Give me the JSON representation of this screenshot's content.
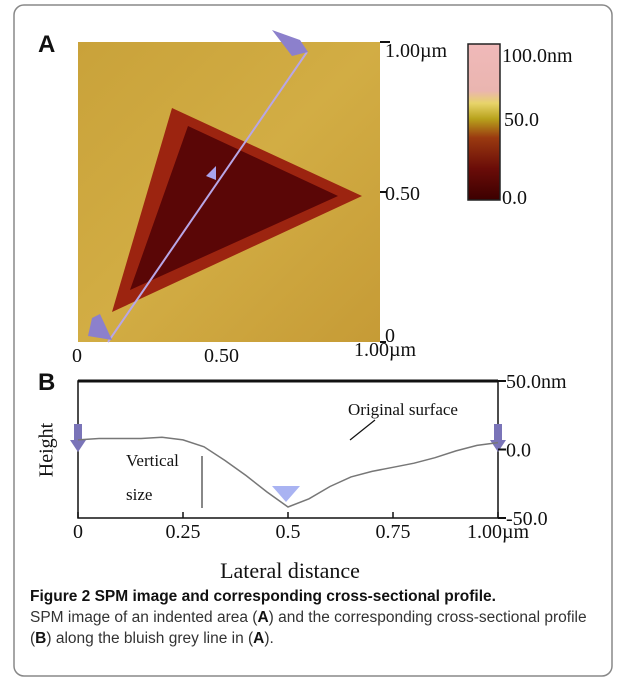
{
  "panel_a": {
    "label": "A",
    "right_ticks": [
      "1.00µm",
      "0.50",
      "0"
    ],
    "bottom_ticks": [
      "0",
      "0.50",
      "1.00µm"
    ],
    "colorbar_ticks": [
      "100.0nm",
      "50.0",
      "0.0"
    ]
  },
  "chart_data": {
    "type": "line",
    "panel_label": "B",
    "x_label": "Lateral distance",
    "y_label": "Height",
    "annotations": [
      "Original surface",
      "Vertical",
      "size"
    ],
    "x": [
      0,
      0.05,
      0.1,
      0.15,
      0.2,
      0.25,
      0.3,
      0.35,
      0.4,
      0.45,
      0.5,
      0.55,
      0.6,
      0.65,
      0.7,
      0.75,
      0.8,
      0.85,
      0.9,
      0.95,
      1.0
    ],
    "series": [
      {
        "name": "Height",
        "color": "#777777",
        "values": [
          7,
          8,
          8,
          8,
          9,
          7,
          2,
          -8,
          -19,
          -31,
          -42,
          -36,
          -27,
          -20,
          -16,
          -13,
          -10,
          -6,
          -1,
          3,
          5
        ]
      }
    ],
    "xlim": [
      0,
      1
    ],
    "xticks": [
      0,
      0.25,
      0.5,
      0.75,
      {
        "value": 1,
        "label": "1.00µm"
      }
    ],
    "ylim": [
      -50,
      50
    ],
    "yticks": [
      {
        "value": 50,
        "label": "50.0nm"
      },
      {
        "value": 0,
        "label": "0.0"
      },
      {
        "value": -50,
        "label": "-50.0"
      }
    ]
  },
  "caption": {
    "title": "Figure 2 SPM image and corresponding cross-sectional profile.",
    "text": [
      "SPM image of an indented area (",
      "A",
      ") and the corresponding cross-sectional profile (",
      "B",
      ") along the bluish grey line in (",
      "A",
      ")."
    ]
  }
}
